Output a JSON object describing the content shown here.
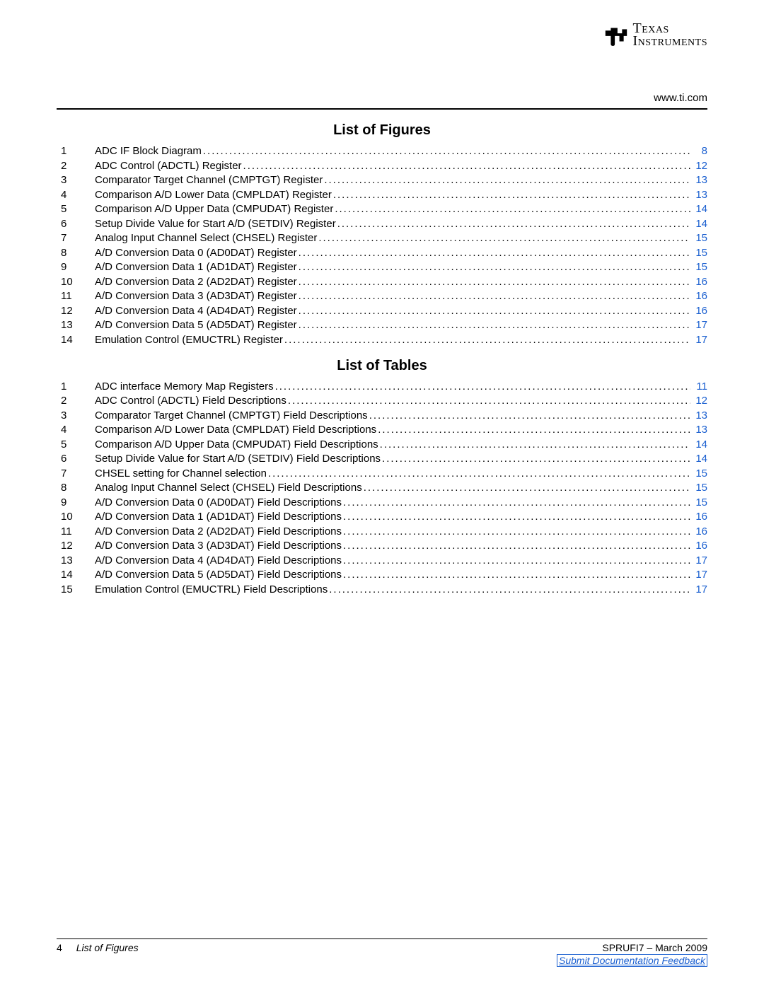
{
  "header": {
    "url": "www.ti.com",
    "logo_top": "Texas",
    "logo_bot": "Instruments"
  },
  "sections": {
    "figures": {
      "title": "List of Figures",
      "entries": [
        {
          "n": "1",
          "t": "ADC IF Block Diagram",
          "p": "8"
        },
        {
          "n": "2",
          "t": "ADC Control (ADCTL) Register",
          "p": "12"
        },
        {
          "n": "3",
          "t": "Comparator Target Channel (CMPTGT) Register",
          "p": "13"
        },
        {
          "n": "4",
          "t": "Comparison A/D Lower Data (CMPLDAT) Register",
          "p": "13"
        },
        {
          "n": "5",
          "t": "Comparison A/D Upper Data (CMPUDAT) Register",
          "p": "14"
        },
        {
          "n": "6",
          "t": "Setup Divide Value for Start A/D (SETDIV) Register",
          "p": "14"
        },
        {
          "n": "7",
          "t": "Analog Input Channel Select (CHSEL) Register",
          "p": "15"
        },
        {
          "n": "8",
          "t": "A/D Conversion Data 0 (AD0DAT) Register",
          "p": "15"
        },
        {
          "n": "9",
          "t": "A/D Conversion Data 1 (AD1DAT) Register",
          "p": "15"
        },
        {
          "n": "10",
          "t": "A/D Conversion Data 2 (AD2DAT) Register",
          "p": "16"
        },
        {
          "n": "11",
          "t": "A/D Conversion Data 3 (AD3DAT) Register",
          "p": "16"
        },
        {
          "n": "12",
          "t": "A/D Conversion Data 4 (AD4DAT) Register",
          "p": "16"
        },
        {
          "n": "13",
          "t": "A/D Conversion Data 5 (AD5DAT) Register",
          "p": "17"
        },
        {
          "n": "14",
          "t": "Emulation Control (EMUCTRL) Register",
          "p": "17"
        }
      ]
    },
    "tables": {
      "title": "List of Tables",
      "entries": [
        {
          "n": "1",
          "t": "ADC interface Memory Map Registers",
          "p": "11"
        },
        {
          "n": "2",
          "t": "ADC Control (ADCTL) Field Descriptions",
          "p": "12"
        },
        {
          "n": "3",
          "t": "Comparator Target Channel (CMPTGT) Field Descriptions",
          "p": "13"
        },
        {
          "n": "4",
          "t": "Comparison A/D Lower Data (CMPLDAT) Field Descriptions",
          "p": "13"
        },
        {
          "n": "5",
          "t": "Comparison A/D Upper Data (CMPUDAT) Field Descriptions",
          "p": "14"
        },
        {
          "n": "6",
          "t": "Setup Divide Value for Start A/D (SETDIV) Field Descriptions",
          "p": "14"
        },
        {
          "n": "7",
          "t": "CHSEL setting for Channel selection",
          "p": "15"
        },
        {
          "n": "8",
          "t": "Analog Input Channel Select (CHSEL) Field Descriptions",
          "p": "15"
        },
        {
          "n": "9",
          "t": "A/D Conversion Data 0 (AD0DAT) Field Descriptions",
          "p": "15"
        },
        {
          "n": "10",
          "t": "A/D Conversion Data 1 (AD1DAT) Field Descriptions",
          "p": "16"
        },
        {
          "n": "11",
          "t": "A/D Conversion Data 2 (AD2DAT) Field Descriptions",
          "p": "16"
        },
        {
          "n": "12",
          "t": "A/D Conversion Data 3 (AD3DAT) Field Descriptions",
          "p": "16"
        },
        {
          "n": "13",
          "t": "A/D Conversion Data 4 (AD4DAT) Field Descriptions",
          "p": "17"
        },
        {
          "n": "14",
          "t": "A/D Conversion Data 5 (AD5DAT) Field Descriptions",
          "p": "17"
        },
        {
          "n": "15",
          "t": "Emulation Control (EMUCTRL) Field Descriptions",
          "p": "17"
        }
      ]
    }
  },
  "footer": {
    "page_number": "4",
    "section_name": "List of Figures",
    "doc_id": "SPRUFI7 – March 2009",
    "feedback": "Submit Documentation Feedback"
  },
  "colors": {
    "link": "#1a5fd0",
    "text": "#000000",
    "background": "#ffffff"
  }
}
